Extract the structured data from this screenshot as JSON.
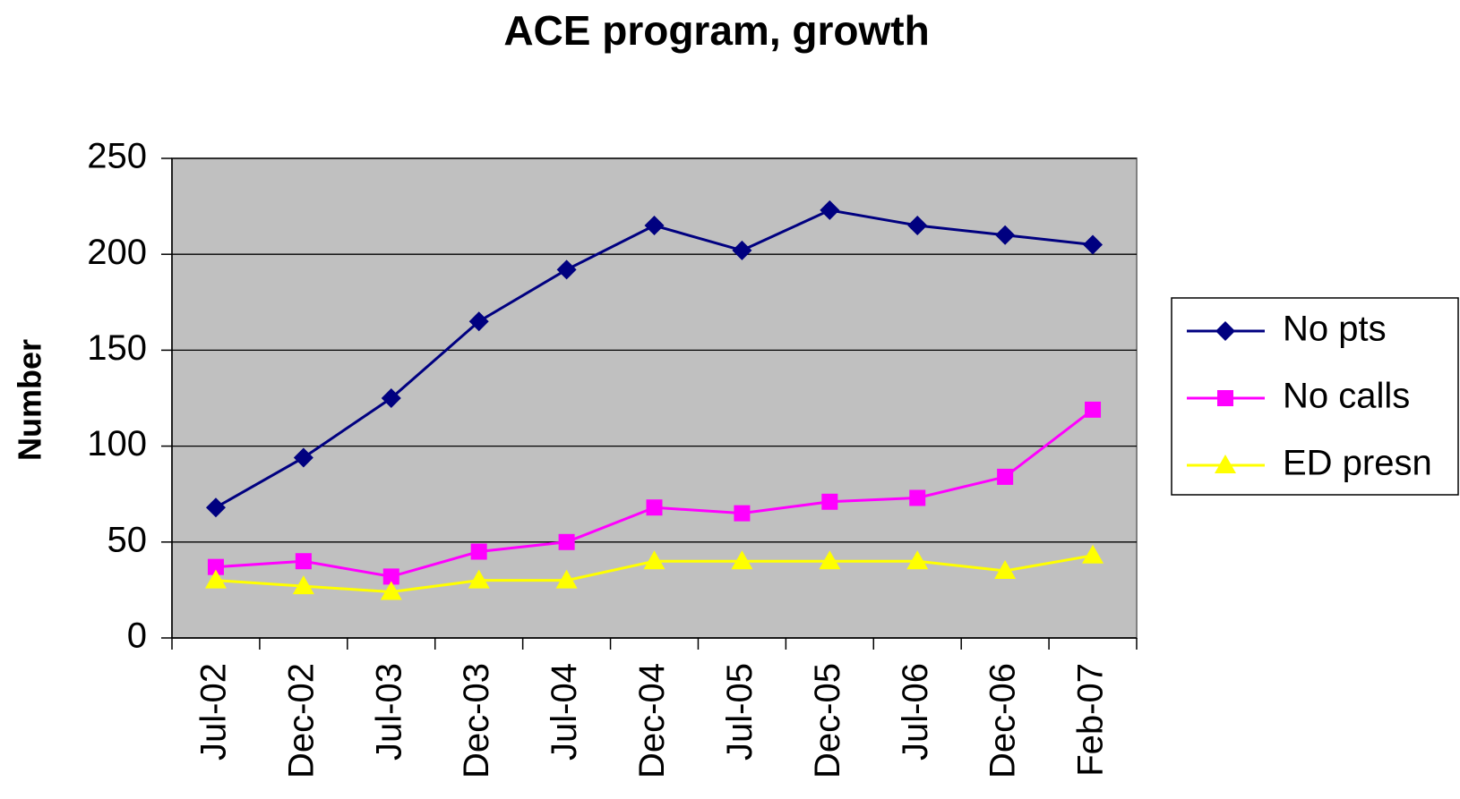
{
  "chart_data": {
    "type": "line",
    "title": "ACE program, growth",
    "y_label": "Number",
    "categories": [
      "Jul-02",
      "Dec-02",
      "Jul-03",
      "Dec-03",
      "Jul-04",
      "Dec-04",
      "Jul-05",
      "Dec-05",
      "Jul-06",
      "Dec-06",
      "Feb-07"
    ],
    "series": [
      {
        "name": "No pts",
        "color": "#000080",
        "marker": "diamond",
        "values": [
          68,
          94,
          125,
          165,
          192,
          215,
          202,
          223,
          215,
          210,
          205
        ]
      },
      {
        "name": "No calls",
        "color": "#ff00ff",
        "marker": "square",
        "values": [
          37,
          40,
          32,
          45,
          50,
          68,
          65,
          71,
          73,
          84,
          119
        ]
      },
      {
        "name": "ED presn",
        "color": "#ffff00",
        "marker": "triangle",
        "values": [
          30,
          27,
          24,
          30,
          30,
          40,
          40,
          40,
          40,
          35,
          43
        ]
      }
    ],
    "ylim": [
      0,
      250
    ],
    "yticks": [
      0,
      50,
      100,
      150,
      200,
      250
    ],
    "grid": true,
    "plot_background": "#c0c0c0",
    "legend": "right"
  }
}
